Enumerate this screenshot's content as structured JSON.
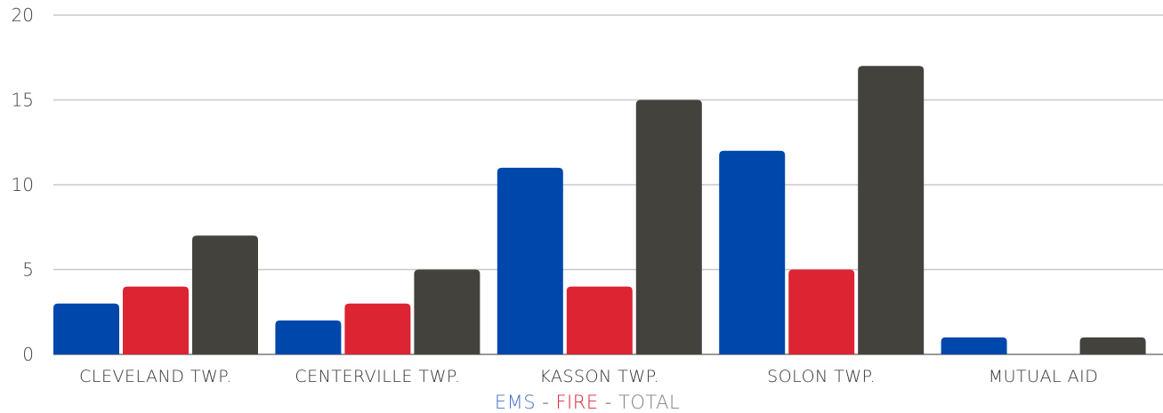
{
  "chart_data": {
    "type": "bar",
    "categories": [
      "CLEVELAND TWP.",
      "CENTERVILLE TWP.",
      "KASSON TWP.",
      "SOLON TWP.",
      "MUTUAL AID"
    ],
    "series": [
      {
        "name": "EMS",
        "color": "#0047AB",
        "values": [
          3,
          2,
          11,
          12,
          1
        ]
      },
      {
        "name": "FIRE",
        "color": "#DC2433",
        "values": [
          4,
          3,
          4,
          5,
          0
        ]
      },
      {
        "name": "TOTAL",
        "color": "#43423D",
        "values": [
          7,
          5,
          15,
          17,
          1
        ]
      }
    ],
    "ylim": [
      0,
      20
    ],
    "yticks": [
      0,
      5,
      10,
      15,
      20
    ],
    "ytick_labels": [
      "0",
      "5",
      "10",
      "15",
      "20"
    ],
    "grid": true,
    "legend_position": "bottom-center",
    "legend": {
      "items": [
        "EMS",
        "FIRE",
        "TOTAL"
      ],
      "separator": " - ",
      "colors": [
        "#4472C4",
        "#DC2433",
        "#7F7F7F"
      ]
    },
    "title": "",
    "xlabel": "",
    "ylabel": ""
  },
  "colors": {
    "gridline": "#C8C8C8",
    "baseline": "#9A9A9A"
  }
}
